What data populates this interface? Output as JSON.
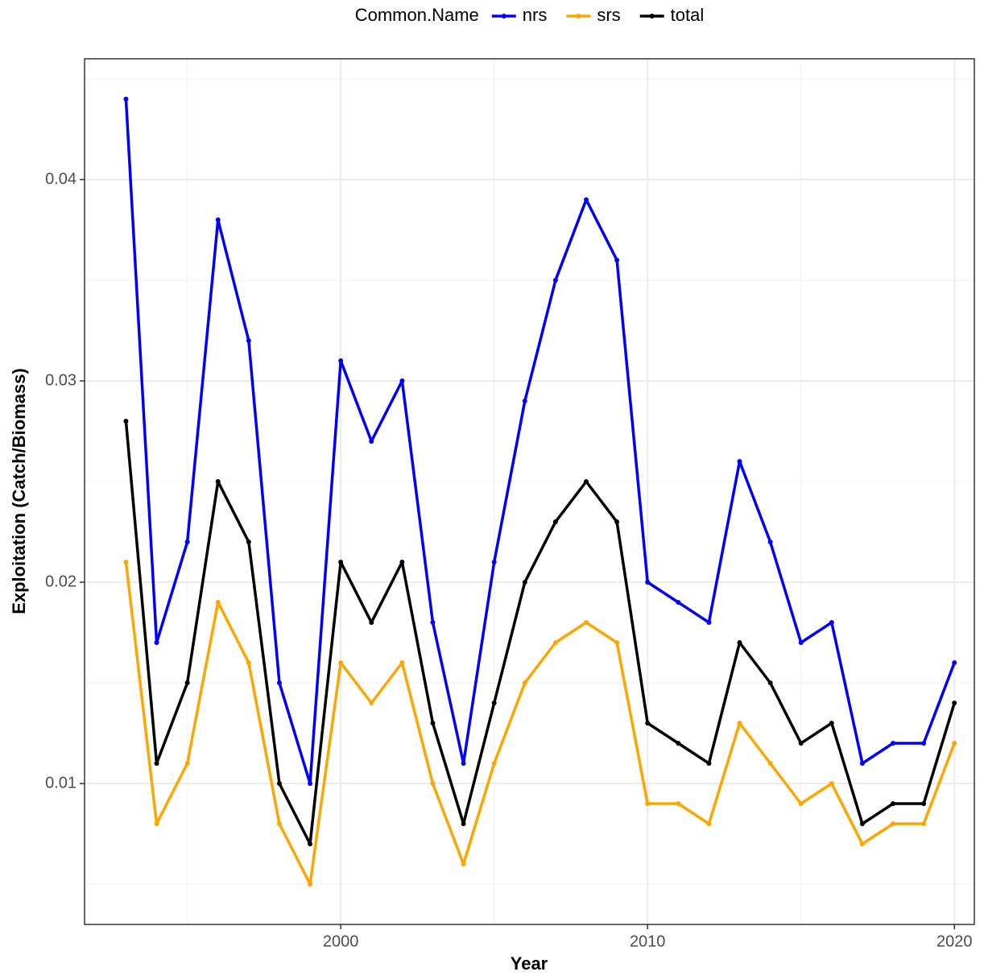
{
  "chart_data": {
    "type": "line",
    "x_label": "Year",
    "y_label": "Exploitation (Catch/Biomass)",
    "legend_title": "Common.Name",
    "legend_position": "top",
    "grid": true,
    "x": [
      1993,
      1994,
      1995,
      1996,
      1997,
      1998,
      1999,
      2000,
      2001,
      2002,
      2003,
      2004,
      2005,
      2006,
      2007,
      2008,
      2009,
      2010,
      2011,
      2012,
      2013,
      2014,
      2015,
      2016,
      2017,
      2018,
      2019,
      2020
    ],
    "series": [
      {
        "name": "nrs",
        "color": "#0000ff",
        "values": [
          0.044,
          0.017,
          0.022,
          0.038,
          0.032,
          0.015,
          0.01,
          0.031,
          0.027,
          0.03,
          0.018,
          0.011,
          0.021,
          0.029,
          0.035,
          0.039,
          0.036,
          0.02,
          0.019,
          0.018,
          0.026,
          0.022,
          0.017,
          0.018,
          0.011,
          0.012,
          0.012,
          0.016
        ]
      },
      {
        "name": "srs",
        "color": "#ffa500",
        "values": [
          0.021,
          0.008,
          0.011,
          0.019,
          0.016,
          0.008,
          0.005,
          0.016,
          0.014,
          0.016,
          0.01,
          0.006,
          0.011,
          0.015,
          0.017,
          0.018,
          0.017,
          0.009,
          0.009,
          0.008,
          0.013,
          0.011,
          0.009,
          0.01,
          0.007,
          0.008,
          0.008,
          0.012
        ]
      },
      {
        "name": "total",
        "color": "#000000",
        "values": [
          0.028,
          0.011,
          0.015,
          0.025,
          0.022,
          0.01,
          0.007,
          0.021,
          0.018,
          0.021,
          0.013,
          0.008,
          0.014,
          0.02,
          0.023,
          0.025,
          0.023,
          0.013,
          0.012,
          0.011,
          0.017,
          0.015,
          0.012,
          0.013,
          0.008,
          0.009,
          0.009,
          0.014
        ]
      }
    ],
    "xlim": [
      1991.65,
      2020.65
    ],
    "xticks": [
      2000,
      2010,
      2020
    ],
    "ylim": [
      0.003,
      0.046
    ],
    "yticks": [
      0.01,
      0.02,
      0.03,
      0.04
    ]
  }
}
